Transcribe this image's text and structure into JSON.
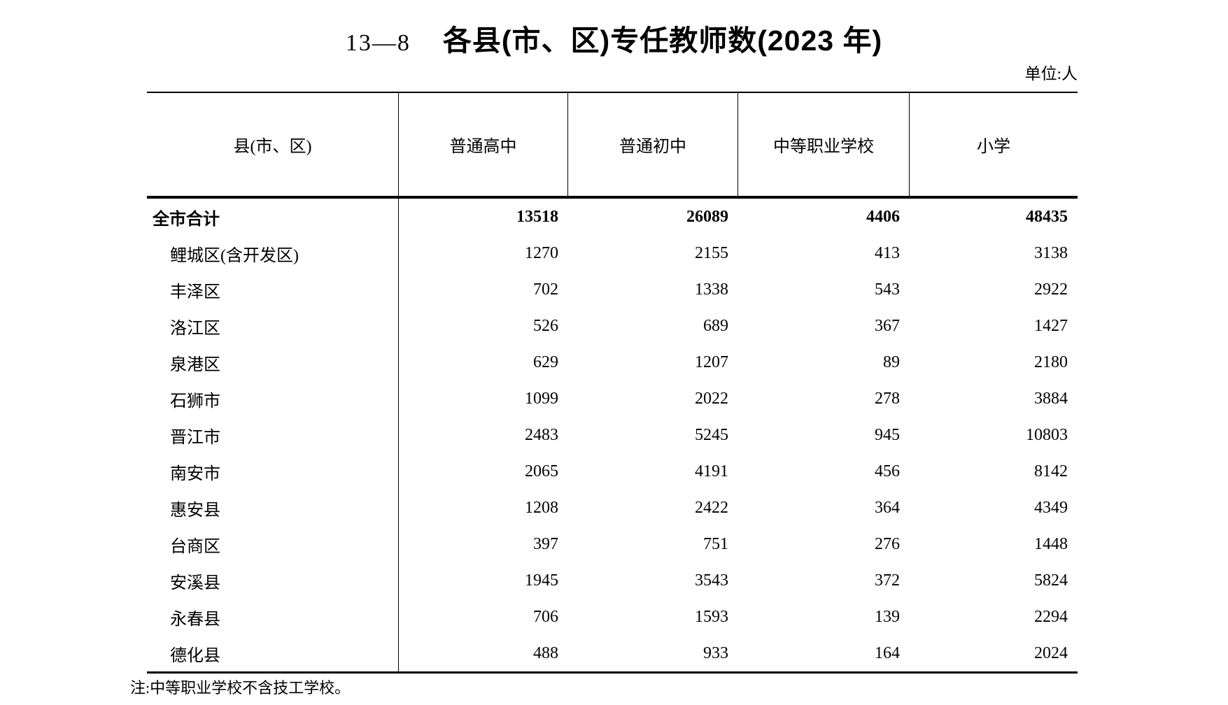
{
  "page": {
    "table_code": "13—8",
    "title": "各县(市、区)专任教师数(2023 年)",
    "unit_label": "单位:人",
    "note": "注:中等职业学校不含技工学校。"
  },
  "table": {
    "columns": [
      "县(市、区)",
      "普通高中",
      "普通初中",
      "中等职业学校",
      "小学"
    ],
    "total": {
      "label": "全市合计",
      "values": [
        "13518",
        "26089",
        "4406",
        "48435"
      ]
    },
    "rows": [
      {
        "label": "鲤城区(含开发区)",
        "values": [
          "1270",
          "2155",
          "413",
          "3138"
        ]
      },
      {
        "label": "丰泽区",
        "values": [
          "702",
          "1338",
          "543",
          "2922"
        ]
      },
      {
        "label": "洛江区",
        "values": [
          "526",
          "689",
          "367",
          "1427"
        ]
      },
      {
        "label": "泉港区",
        "values": [
          "629",
          "1207",
          "89",
          "2180"
        ]
      },
      {
        "label": "石狮市",
        "values": [
          "1099",
          "2022",
          "278",
          "3884"
        ]
      },
      {
        "label": "晋江市",
        "values": [
          "2483",
          "5245",
          "945",
          "10803"
        ]
      },
      {
        "label": "南安市",
        "values": [
          "2065",
          "4191",
          "456",
          "8142"
        ]
      },
      {
        "label": "惠安县",
        "values": [
          "1208",
          "2422",
          "364",
          "4349"
        ]
      },
      {
        "label": "台商区",
        "values": [
          "397",
          "751",
          "276",
          "1448"
        ]
      },
      {
        "label": "安溪县",
        "values": [
          "1945",
          "3543",
          "372",
          "5824"
        ]
      },
      {
        "label": "永春县",
        "values": [
          "706",
          "1593",
          "139",
          "2294"
        ]
      },
      {
        "label": "德化县",
        "values": [
          "488",
          "933",
          "164",
          "2024"
        ]
      }
    ]
  }
}
